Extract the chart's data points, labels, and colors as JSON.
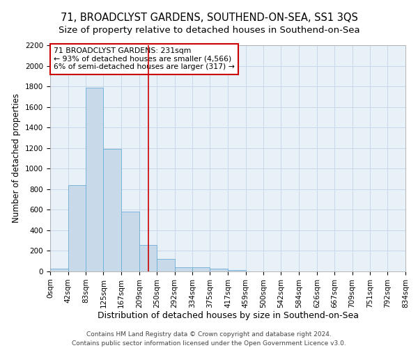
{
  "title": "71, BROADCLYST GARDENS, SOUTHEND-ON-SEA, SS1 3QS",
  "subtitle": "Size of property relative to detached houses in Southend-on-Sea",
  "xlabel": "Distribution of detached houses by size in Southend-on-Sea",
  "ylabel": "Number of detached properties",
  "footer_line1": "Contains HM Land Registry data © Crown copyright and database right 2024.",
  "footer_line2": "Contains public sector information licensed under the Open Government Licence v3.0.",
  "bar_color": "#c8daea",
  "bar_edgecolor": "#6baed6",
  "vline_color": "#cc0000",
  "vline_x": 231,
  "annotation_text": "71 BROADCLYST GARDENS: 231sqm\n← 93% of detached houses are smaller (4,566)\n6% of semi-detached houses are larger (317) →",
  "annotation_box_edgecolor": "#cc0000",
  "bin_edges": [
    0,
    42,
    83,
    125,
    167,
    209,
    250,
    292,
    334,
    375,
    417,
    459,
    500,
    542,
    584,
    626,
    667,
    709,
    751,
    792,
    834
  ],
  "bar_heights": [
    25,
    840,
    1790,
    1190,
    585,
    255,
    120,
    42,
    42,
    30,
    15,
    0,
    0,
    0,
    0,
    0,
    0,
    0,
    0,
    0
  ],
  "ylim": [
    0,
    2200
  ],
  "yticks": [
    0,
    200,
    400,
    600,
    800,
    1000,
    1200,
    1400,
    1600,
    1800,
    2000,
    2200
  ],
  "grid_color": "#c8d8e8",
  "bg_color": "#e8f0f8",
  "title_fontsize": 10.5,
  "subtitle_fontsize": 9.5,
  "xlabel_fontsize": 9,
  "ylabel_fontsize": 8.5,
  "tick_fontsize": 7.5,
  "footer_fontsize": 6.5
}
